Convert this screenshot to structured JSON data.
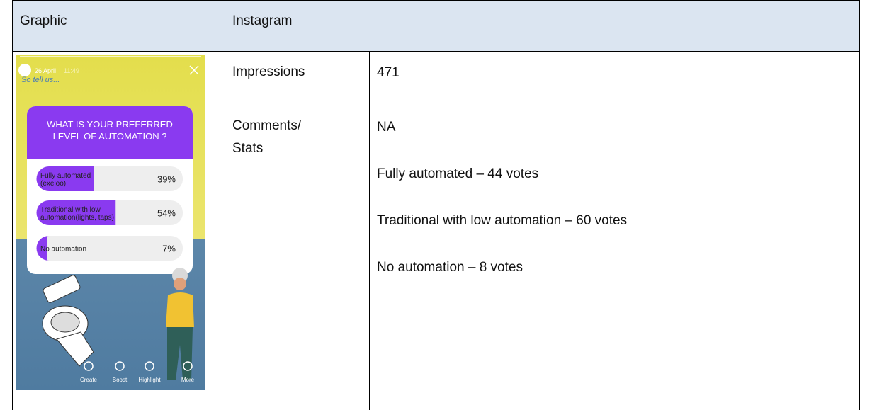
{
  "header": {
    "graphic": "Graphic",
    "platform": "Instagram"
  },
  "story": {
    "date": "26 April",
    "time": "11:49",
    "caption": "So tell us...",
    "question": [
      "WHAT IS YOUR PREFERRED",
      "LEVEL OF AUTOMATION ?"
    ],
    "options": [
      {
        "label": [
          "Fully automated",
          "(exeloo)"
        ],
        "percent": 39,
        "percent_label": "39%"
      },
      {
        "label": [
          "Traditional with low",
          "automation(lights, taps)"
        ],
        "percent": 54,
        "percent_label": "54%"
      },
      {
        "label": [
          "No automation"
        ],
        "percent": 7,
        "percent_label": "7%"
      }
    ],
    "actions": [
      "Create",
      "Boost",
      "Highlight",
      "More"
    ]
  },
  "rows": [
    {
      "label": "Impressions",
      "lines": [
        "471"
      ]
    },
    {
      "label": "Comments/ Stats",
      "lines": [
        "NA",
        "Fully automated – 44 votes",
        "Traditional with low automation – 60 votes",
        "No automation – 8 votes"
      ]
    }
  ]
}
